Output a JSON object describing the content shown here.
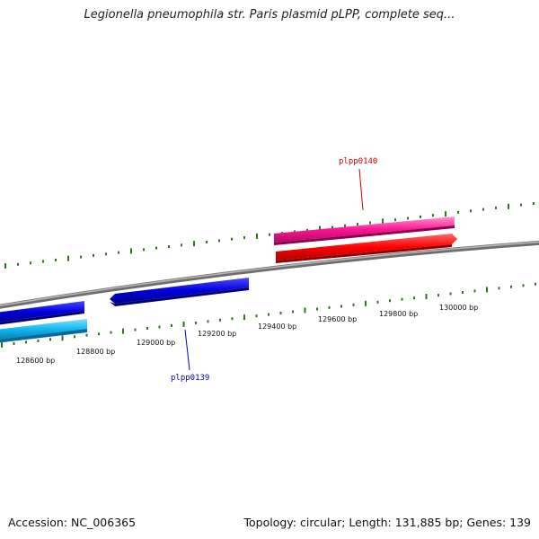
{
  "header": {
    "title": "Legionella pneumophila str. Paris plasmid pLPP, complete seq..."
  },
  "footer": {
    "accession": "Accession: NC_006365",
    "summary": "Topology: circular; Length: 131,885 bp; Genes: 139"
  },
  "scale": {
    "unit": "bp",
    "labels": [
      {
        "bp": 128600,
        "text": "128600 bp"
      },
      {
        "bp": 128800,
        "text": "128800 bp"
      },
      {
        "bp": 129000,
        "text": "129000 bp"
      },
      {
        "bp": 129200,
        "text": "129200 bp"
      },
      {
        "bp": 129400,
        "text": "129400 bp"
      },
      {
        "bp": 129600,
        "text": "129600 bp"
      },
      {
        "bp": 129800,
        "text": "129800 bp"
      },
      {
        "bp": 130000,
        "text": "130000 bp"
      }
    ]
  },
  "features": [
    {
      "name": "plpp0139",
      "strand": "reverse",
      "color": "#0000dd",
      "label_color": "#0000cc"
    },
    {
      "name": "plpp0140",
      "strand": "forward",
      "color": "#ff0000",
      "label_color": "#cc0000"
    }
  ],
  "colors": {
    "backbone": "#888888",
    "ticks": "#2a7a1a",
    "cds_forward": "#ff1493",
    "cds_reverse": "#00bfff"
  }
}
